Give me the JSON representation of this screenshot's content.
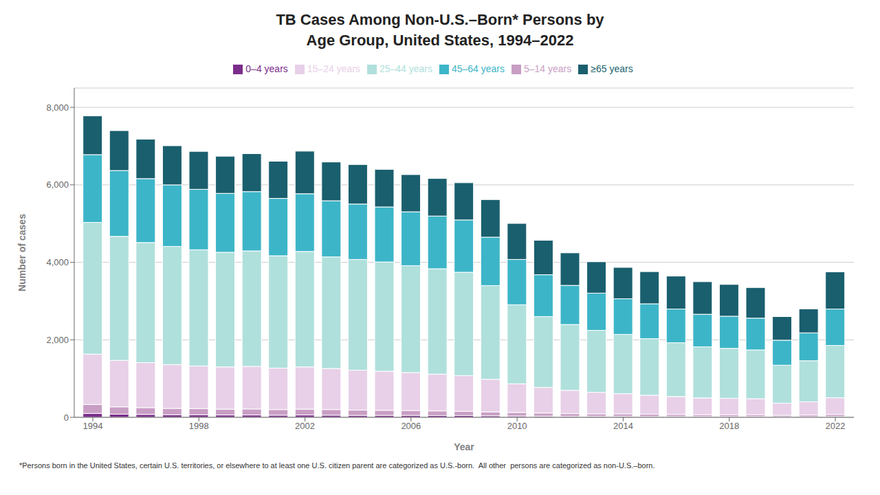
{
  "chart_data": {
    "type": "bar",
    "stacked": true,
    "title": "TB Cases Among Non-U.S.–Born* Persons by\nAge Group, United States, 1994–2022",
    "xlabel": "Year",
    "ylabel": "Number of cases",
    "annotations": [
      "*Persons born in the United States, certain U.S. territories, or elsewhere to at least one U.S. citizen parent are categorized as U.S.-born.  All other  persons are categorized as non-U.S.–born."
    ],
    "x": [
      1994,
      1995,
      1996,
      1997,
      1998,
      1999,
      2000,
      2001,
      2002,
      2003,
      2004,
      2005,
      2006,
      2007,
      2008,
      2009,
      2010,
      2011,
      2012,
      2013,
      2014,
      2015,
      2016,
      2017,
      2018,
      2019,
      2020,
      2021,
      2022
    ],
    "xlim": [
      1993.3,
      2022.7
    ],
    "xticks": [
      1994,
      1998,
      2002,
      2006,
      2010,
      2014,
      2018,
      2022
    ],
    "ylim": [
      0,
      8500
    ],
    "yticks": [
      0,
      {
        "value": 2000,
        "label": "2,000"
      },
      {
        "value": 4000,
        "label": "4,000"
      },
      {
        "value": 6000,
        "label": "6,000"
      },
      {
        "value": 8000,
        "label": "8,000"
      }
    ],
    "grid": true,
    "legend": "top",
    "series": [
      {
        "name": "0–4 years",
        "color": "#7b2d8b",
        "values": [
          100,
          80,
          75,
          65,
          65,
          60,
          60,
          55,
          60,
          55,
          50,
          50,
          50,
          45,
          45,
          40,
          35,
          30,
          25,
          25,
          25,
          20,
          20,
          20,
          20,
          20,
          15,
          15,
          20
        ]
      },
      {
        "name": "5–14 years",
        "color": "#c89ec4",
        "values": [
          230,
          190,
          175,
          165,
          160,
          150,
          155,
          145,
          150,
          145,
          135,
          130,
          125,
          120,
          110,
          100,
          90,
          80,
          70,
          65,
          65,
          60,
          55,
          50,
          50,
          50,
          40,
          45,
          55
        ]
      },
      {
        "name": "15–24 years",
        "color": "#e8d0e8",
        "values": [
          1300,
          1200,
          1160,
          1130,
          1100,
          1090,
          1100,
          1070,
          1090,
          1060,
          1030,
          1010,
          980,
          950,
          920,
          840,
          740,
          660,
          600,
          555,
          520,
          490,
          460,
          430,
          420,
          410,
          310,
          340,
          430
        ]
      },
      {
        "name": "25–44 years",
        "color": "#b0e0dc",
        "values": [
          3400,
          3200,
          3100,
          3050,
          3000,
          2960,
          2980,
          2900,
          2980,
          2880,
          2860,
          2820,
          2760,
          2720,
          2670,
          2420,
          2040,
          1830,
          1700,
          1600,
          1530,
          1460,
          1390,
          1320,
          1290,
          1260,
          980,
          1060,
          1350
        ]
      },
      {
        "name": "45–64 years",
        "color": "#3db5c8",
        "values": [
          1750,
          1700,
          1650,
          1590,
          1560,
          1520,
          1530,
          1480,
          1490,
          1450,
          1430,
          1420,
          1390,
          1360,
          1350,
          1250,
          1170,
          1080,
          1010,
          960,
          920,
          900,
          870,
          840,
          830,
          820,
          645,
          720,
          940
        ]
      },
      {
        "name": "≥65 years",
        "color": "#1a5f6e",
        "values": [
          1000,
          1030,
          1020,
          1010,
          980,
          960,
          980,
          960,
          1100,
          1000,
          1020,
          970,
          960,
          970,
          960,
          970,
          930,
          890,
          840,
          810,
          810,
          830,
          850,
          840,
          820,
          790,
          610,
          620,
          960
        ]
      }
    ]
  }
}
